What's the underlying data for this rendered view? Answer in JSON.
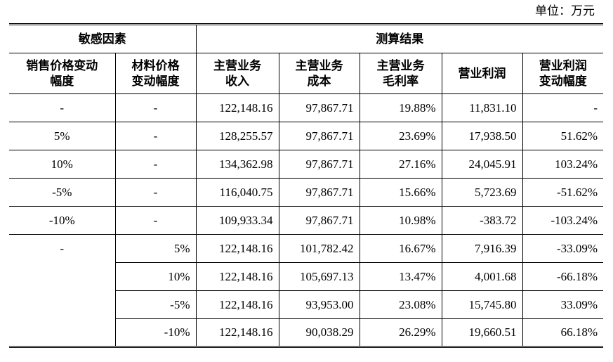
{
  "unit_label": "单位：万元",
  "header": {
    "group_left": "敏感因素",
    "group_right": "测算结果",
    "columns": [
      "销售价格变动幅度",
      "材料价格变动幅度",
      "主营业务收入",
      "主营业务成本",
      "主营业务毛利率",
      "营业利润",
      "营业利润变动幅度"
    ],
    "col_lines": [
      [
        "销售价格变动",
        "幅度"
      ],
      [
        "材料价格",
        "变动幅度"
      ],
      [
        "主营业务",
        "收入"
      ],
      [
        "主营业务",
        "成本"
      ],
      [
        "主营业务",
        "毛利率"
      ],
      [
        "营业利润"
      ],
      [
        "营业利润",
        "变动幅度"
      ]
    ]
  },
  "rows": [
    [
      "-",
      "-",
      "122,148.16",
      "97,867.71",
      "19.88%",
      "11,831.10",
      "-"
    ],
    [
      "5%",
      "-",
      "128,255.57",
      "97,867.71",
      "23.69%",
      "17,938.50",
      "51.62%"
    ],
    [
      "10%",
      "-",
      "134,362.98",
      "97,867.71",
      "27.16%",
      "24,045.91",
      "103.24%"
    ],
    [
      "-5%",
      "-",
      "116,040.75",
      "97,867.71",
      "15.66%",
      "5,723.69",
      "-51.62%"
    ],
    [
      "-10%",
      "-",
      "109,933.34",
      "97,867.71",
      "10.98%",
      "-383.72",
      "-103.24%"
    ],
    [
      "-",
      "5%",
      "122,148.16",
      "101,782.42",
      "16.67%",
      "7,916.39",
      "-33.09%"
    ],
    [
      "",
      "10%",
      "122,148.16",
      "105,697.13",
      "13.47%",
      "4,001.68",
      "-66.18%"
    ],
    [
      "",
      "-5%",
      "122,148.16",
      "93,953.00",
      "23.08%",
      "15,745.80",
      "33.09%"
    ],
    [
      "",
      "-10%",
      "122,148.16",
      "90,038.29",
      "26.29%",
      "19,660.51",
      "66.18%"
    ]
  ]
}
